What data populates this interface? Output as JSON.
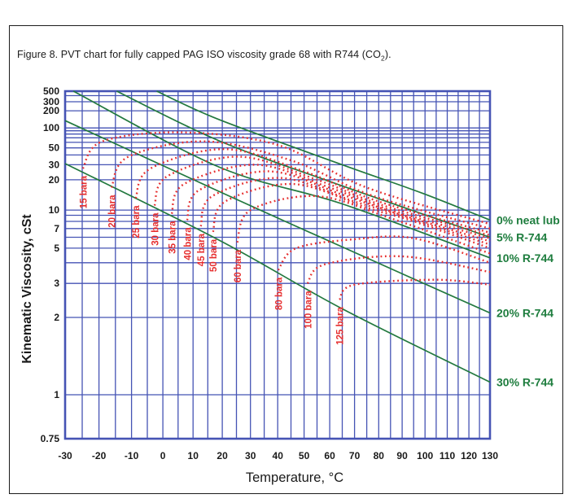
{
  "caption": {
    "text": "Figure 8. PVT chart for fully capped PAG ISO viscosity grade 68 with R744 (CO",
    "sub": "2",
    "tail": ")."
  },
  "chart_data": {
    "type": "line",
    "title": "PVT chart for fully capped PAG ISO viscosity grade 68 with R744 (CO2)",
    "xlabel": "Temperature, °C",
    "ylabel": "Kinematic Viscosity, cSt",
    "x_axis": {
      "scale": "log-kelvin",
      "min": -30,
      "max": 130,
      "grid_step": 5,
      "tick_labels": [
        -30,
        -20,
        -10,
        0,
        10,
        20,
        30,
        40,
        50,
        60,
        70,
        80,
        90,
        100,
        110,
        120,
        130
      ]
    },
    "y_axis": {
      "scale": "astm-double-log",
      "min": 0.75,
      "max": 500,
      "gridlines": [
        0.75,
        1,
        2,
        3,
        4,
        5,
        6,
        7,
        8,
        9,
        10,
        20,
        30,
        40,
        50,
        60,
        70,
        80,
        90,
        100,
        200,
        300,
        400,
        500
      ],
      "tick_labels": [
        "500",
        "300",
        "200",
        "100",
        "50",
        "30",
        "20",
        "10",
        "7",
        "5",
        "3",
        "2",
        "1",
        "0.75"
      ],
      "tick_values": [
        500,
        300,
        200,
        100,
        50,
        30,
        20,
        10,
        7,
        5,
        3,
        2,
        1,
        0.75
      ]
    },
    "colors": {
      "grid": "#4553b4",
      "dilution_line": "#23793f",
      "dilution_text": "#1e7d3e",
      "isobar": "#e62e2e",
      "text": "#1a1a1a"
    },
    "dilution_lines": [
      {
        "label": "0% neat lub",
        "points": [
          [
            -2,
            500
          ],
          [
            19,
            138
          ],
          [
            65,
            30
          ],
          [
            99,
            14.4
          ],
          [
            130,
            8.2
          ]
        ]
      },
      {
        "label": "5% R-744",
        "points": [
          [
            -14.6,
            500
          ],
          [
            19,
            63
          ],
          [
            65,
            17.2
          ],
          [
            130,
            6.0
          ]
        ]
      },
      {
        "label": "10% R-744",
        "points": [
          [
            -27.6,
            500
          ],
          [
            19,
            28
          ],
          [
            65,
            11.4
          ],
          [
            130,
            4.3
          ]
        ]
      },
      {
        "label": "20% R-744",
        "points": [
          [
            -30,
            133
          ],
          [
            19,
            15
          ],
          [
            65,
            5.1
          ],
          [
            130,
            2.1
          ]
        ]
      },
      {
        "label": "30% R-744",
        "points": [
          [
            -30,
            31
          ],
          [
            19,
            5.7
          ],
          [
            65,
            2.2
          ],
          [
            130,
            1.1
          ]
        ]
      }
    ],
    "isobars": [
      {
        "label": "15 bara",
        "points": [
          [
            -24.8,
            27
          ],
          [
            -19,
            62
          ],
          [
            6,
            85
          ],
          [
            40,
            55
          ],
          [
            75,
            16.5
          ],
          [
            130,
            7.6
          ]
        ]
      },
      {
        "label": "20 bara",
        "points": [
          [
            -16.2,
            16.5
          ],
          [
            -11,
            38
          ],
          [
            14,
            62
          ],
          [
            45,
            34
          ],
          [
            78,
            13.5
          ],
          [
            130,
            7.0
          ]
        ]
      },
      {
        "label": "25 bara",
        "points": [
          [
            -8.7,
            12.9
          ],
          [
            -4,
            27
          ],
          [
            21,
            48
          ],
          [
            50,
            25
          ],
          [
            80,
            12
          ],
          [
            130,
            6.5
          ]
        ]
      },
      {
        "label": "30 bara",
        "points": [
          [
            -2.7,
            11
          ],
          [
            1.5,
            22
          ],
          [
            26,
            38
          ],
          [
            55,
            20
          ],
          [
            82,
            11
          ],
          [
            130,
            6.2
          ]
        ]
      },
      {
        "label": "35 bara",
        "points": [
          [
            2.9,
            9.3
          ],
          [
            7,
            18
          ],
          [
            32,
            30
          ],
          [
            60,
            16.5
          ],
          [
            85,
            10
          ],
          [
            130,
            5.9
          ]
        ]
      },
      {
        "label": "40 bara",
        "points": [
          [
            8,
            8.2
          ],
          [
            12,
            15.5
          ],
          [
            37,
            25
          ],
          [
            65,
            14
          ],
          [
            88,
            9.3
          ],
          [
            130,
            5.6
          ]
        ]
      },
      {
        "label": "45 bara",
        "points": [
          [
            12.6,
            7.3
          ],
          [
            16.5,
            13.5
          ],
          [
            41,
            21
          ],
          [
            70,
            12
          ],
          [
            92,
            8.6
          ],
          [
            130,
            5.3
          ]
        ]
      },
      {
        "label": "50 bara",
        "points": [
          [
            16.8,
            6.6
          ],
          [
            21,
            12
          ],
          [
            46,
            18
          ],
          [
            75,
            10.5
          ],
          [
            95,
            8
          ],
          [
            130,
            5.0
          ]
        ]
      },
      {
        "label": "60 bara",
        "points": [
          [
            25.3,
            5.5
          ],
          [
            30,
            10
          ],
          [
            55,
            13.5
          ],
          [
            85,
            8.5
          ],
          [
            130,
            4.6
          ]
        ]
      },
      {
        "label": "80 bara",
        "points": [
          [
            40.2,
            3.6
          ],
          [
            47,
            5.0
          ],
          [
            70,
            5.8
          ],
          [
            95,
            5.9
          ],
          [
            130,
            4.0
          ]
        ]
      },
      {
        "label": "100 bara",
        "points": [
          [
            51.3,
            3.0
          ],
          [
            58,
            3.9
          ],
          [
            90,
            4.4
          ],
          [
            130,
            3.5
          ]
        ]
      },
      {
        "label": "125 bara",
        "points": [
          [
            63.9,
            2.45
          ],
          [
            70,
            2.95
          ],
          [
            105,
            3.15
          ],
          [
            130,
            2.95
          ]
        ]
      }
    ]
  }
}
